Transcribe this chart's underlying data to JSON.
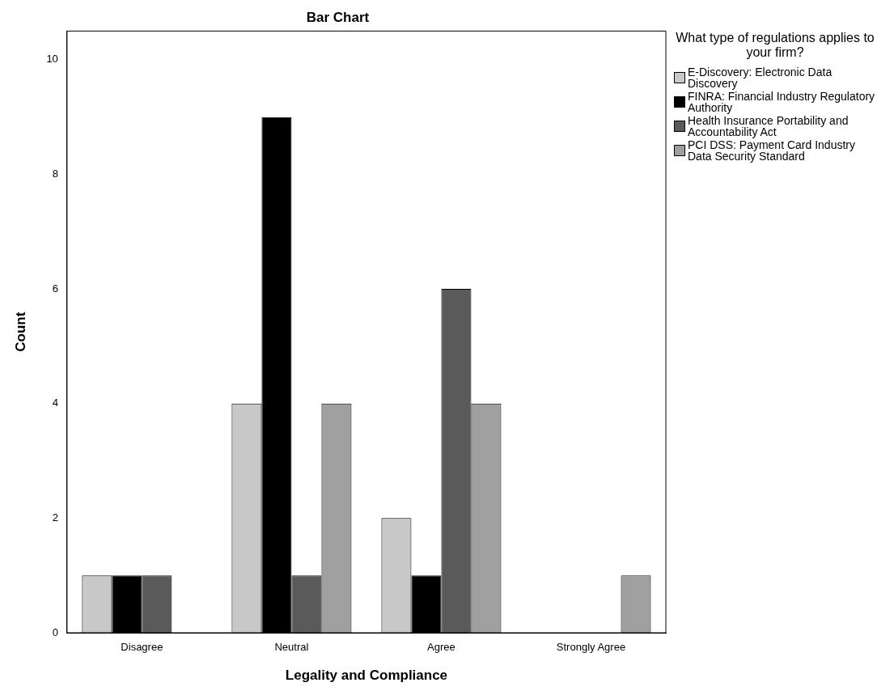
{
  "chart_data": {
    "type": "bar",
    "title": "Bar Chart",
    "xlabel": "Legality and Compliance",
    "ylabel": "Count",
    "legend_title": "What type of regulations applies to your firm?",
    "legend": "top right",
    "categories": [
      "Disagree",
      "Neutral",
      "Agree",
      "Strongly Agree"
    ],
    "series": [
      {
        "name": "E-Discovery: Electronic Data Discovery",
        "color": "#c8c8c8",
        "values": [
          1,
          4,
          2,
          0
        ]
      },
      {
        "name": "FINRA: Financial Industry Regulatory Authority",
        "color": "#000000",
        "values": [
          1,
          9,
          1,
          0
        ]
      },
      {
        "name": "Health Insurance Portability and Accountability Act",
        "color": "#5a5a5a",
        "values": [
          1,
          1,
          6,
          0
        ]
      },
      {
        "name": "PCI DSS: Payment Card Industry Data Security Standard",
        "color": "#a0a0a0",
        "values": [
          0,
          4,
          4,
          1
        ]
      }
    ],
    "ylim": [
      0,
      10.5
    ],
    "yticks": [
      0,
      2,
      4,
      6,
      8,
      10
    ],
    "grid": false
  }
}
